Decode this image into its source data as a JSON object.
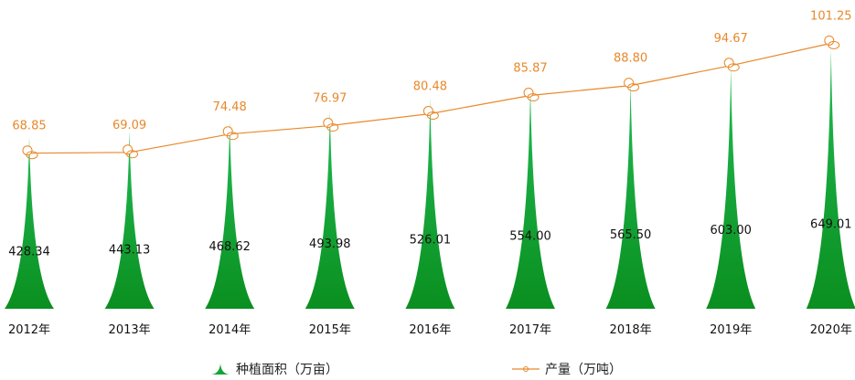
{
  "chart_data": {
    "type": "bar",
    "categories": [
      "2012年",
      "2013年",
      "2014年",
      "2015年",
      "2016年",
      "2017年",
      "2018年",
      "2019年",
      "2020年"
    ],
    "series": [
      {
        "name": "种植面积（万亩）",
        "chart_type": "bar",
        "values": [
          428.34,
          443.13,
          468.62,
          493.98,
          526.01,
          554.0,
          565.5,
          603.0,
          649.01
        ],
        "labels": [
          "428.34",
          "443.13",
          "468.62",
          "493.98",
          "526.01",
          "554.00",
          "565.50",
          "603.00",
          "649.01"
        ],
        "color": "#14a33b"
      },
      {
        "name": "产量（万吨）",
        "chart_type": "line",
        "values": [
          68.85,
          69.09,
          74.48,
          76.97,
          80.48,
          85.87,
          88.8,
          94.67,
          101.25
        ],
        "labels": [
          "68.85",
          "69.09",
          "74.48",
          "76.97",
          "80.48",
          "85.87",
          "88.80",
          "94.67",
          "101.25"
        ],
        "color": "#e8882a"
      }
    ],
    "xlabel": "",
    "ylabel": "",
    "grid": false,
    "legend_position": "bottom",
    "bar_style": "tapered-spike"
  },
  "legend": {
    "area_label": "种植面积（万亩）",
    "output_label": "产量（万吨）"
  }
}
